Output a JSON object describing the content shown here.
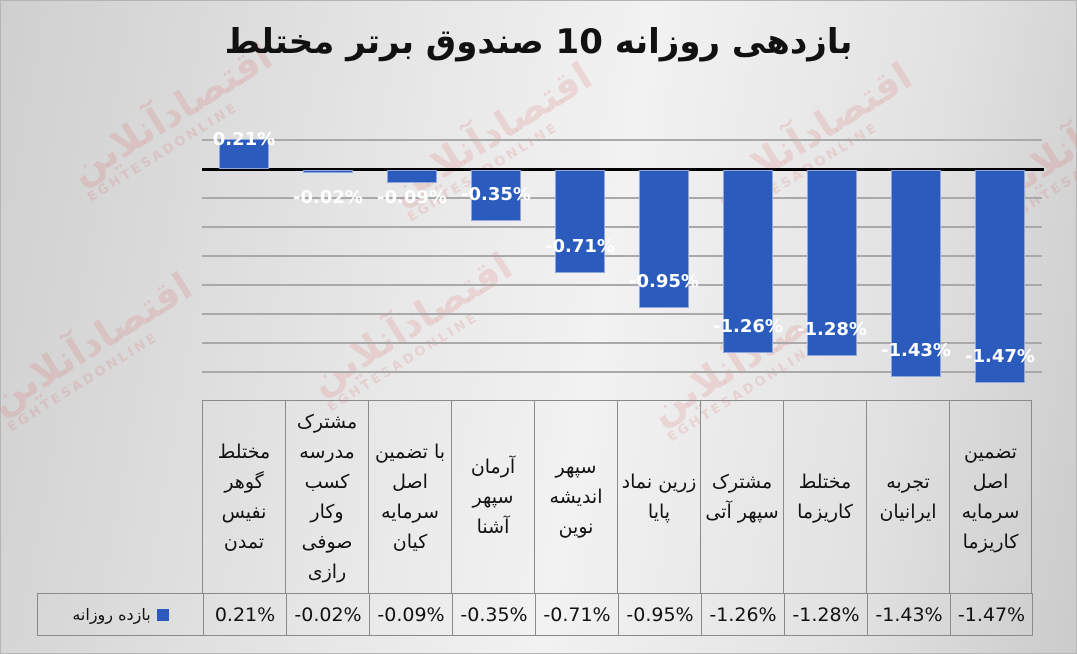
{
  "title": "بازدهی روزانه 10 صندوق برتر مختلط",
  "watermark": {
    "text": "اقتصادآنلاین",
    "subtext": "EGHTESADONLINE"
  },
  "legend": {
    "series_name": "بازده روزانه",
    "color": "#2a5bbd"
  },
  "chart_data": {
    "type": "bar",
    "title": "بازدهی روزانه 10 صندوق برتر مختلط",
    "xlabel": "",
    "ylabel": "",
    "ylim": [
      -1.4,
      0.2
    ],
    "grid": true,
    "legend_position": "bottom (data table)",
    "categories": [
      "مختلط گوهر نفیس تمدن",
      "مشترک مدرسه کسب وکار صوفی رازی",
      "با تضمین اصل سرمایه کیان",
      "آرمان سپهر آشنا",
      "سپهر اندیشه نوین",
      "زرین نماد پایا",
      "مشترک سپهر آتی",
      "مختلط کاریزما",
      "تجربه ایرانیان",
      "تضمین اصل سرمایه کاریزما"
    ],
    "series": [
      {
        "name": "بازده روزانه",
        "values": [
          0.21,
          -0.02,
          -0.09,
          -0.35,
          -0.71,
          -0.95,
          -1.26,
          -1.28,
          -1.43,
          -1.47
        ]
      }
    ],
    "data_labels": [
      "0.21%",
      "-0.02%",
      "-0.09%",
      "-0.35%",
      "-0.71%",
      "-0.95%",
      "-1.26%",
      "-1.28%",
      "-1.43%",
      "-1.47%"
    ]
  }
}
